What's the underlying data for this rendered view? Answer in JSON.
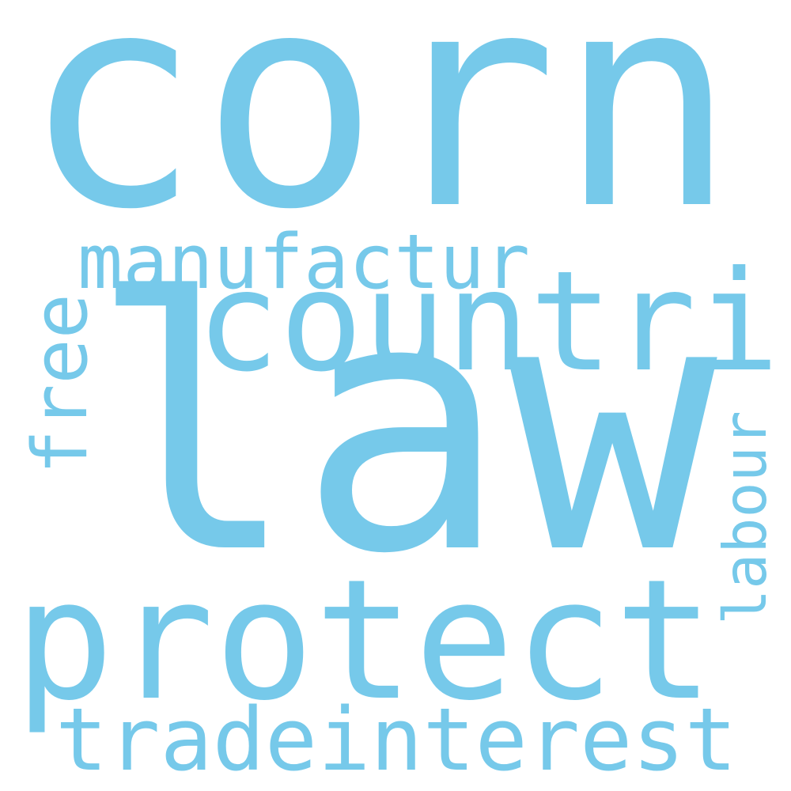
{
  "word_cloud": {
    "color": "#76c9ea",
    "background": "#ffffff",
    "words": {
      "corn": "corn",
      "manufactur": "manufactur",
      "free": "free",
      "countri": "countri",
      "law": "law",
      "labour": "labour",
      "protect": "protect",
      "trade": "trade",
      "interest": "interest"
    }
  }
}
